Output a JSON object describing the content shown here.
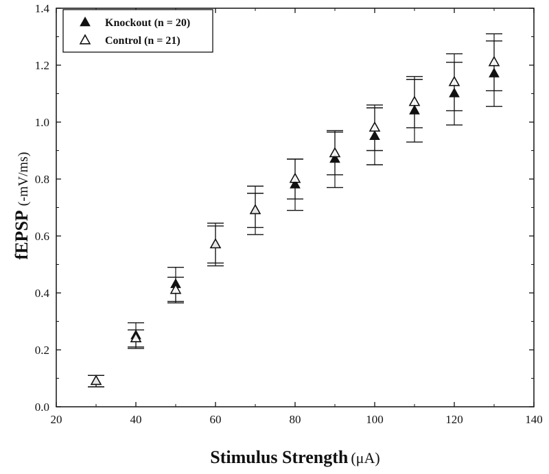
{
  "chart_data": {
    "type": "scatter",
    "xlabel": {
      "main": "Stimulus Strength",
      "unit": "(μA)"
    },
    "ylabel": {
      "main": "fEPSP",
      "unit": "(-mV/ms)"
    },
    "xlim": [
      20,
      140
    ],
    "ylim": [
      0.0,
      1.4
    ],
    "xticks": [
      "20",
      "40",
      "60",
      "80",
      "100",
      "120",
      "140"
    ],
    "yticks": [
      "0.0",
      "0.2",
      "0.4",
      "0.6",
      "0.8",
      "1.0",
      "1.2",
      "1.4"
    ],
    "grid": false,
    "legend_position": "top-left",
    "series": [
      {
        "name": "Knockout (n = 20)",
        "marker": "filled-triangle",
        "x": [
          30,
          40,
          50,
          60,
          70,
          80,
          90,
          100,
          110,
          120,
          130
        ],
        "y": [
          0.09,
          0.25,
          0.43,
          0.57,
          0.69,
          0.78,
          0.87,
          0.95,
          1.04,
          1.1,
          1.17
        ],
        "error": [
          0.02,
          0.045,
          0.06,
          0.075,
          0.06,
          0.09,
          0.1,
          0.1,
          0.11,
          0.11,
          0.115
        ]
      },
      {
        "name": "Control (n = 21)",
        "marker": "open-triangle",
        "x": [
          30,
          40,
          50,
          60,
          70,
          80,
          90,
          100,
          110,
          120,
          130
        ],
        "y": [
          0.09,
          0.24,
          0.41,
          0.57,
          0.69,
          0.8,
          0.89,
          0.98,
          1.07,
          1.14,
          1.21
        ],
        "error": [
          0.02,
          0.03,
          0.045,
          0.065,
          0.085,
          0.07,
          0.075,
          0.08,
          0.09,
          0.1,
          0.1
        ]
      }
    ]
  }
}
